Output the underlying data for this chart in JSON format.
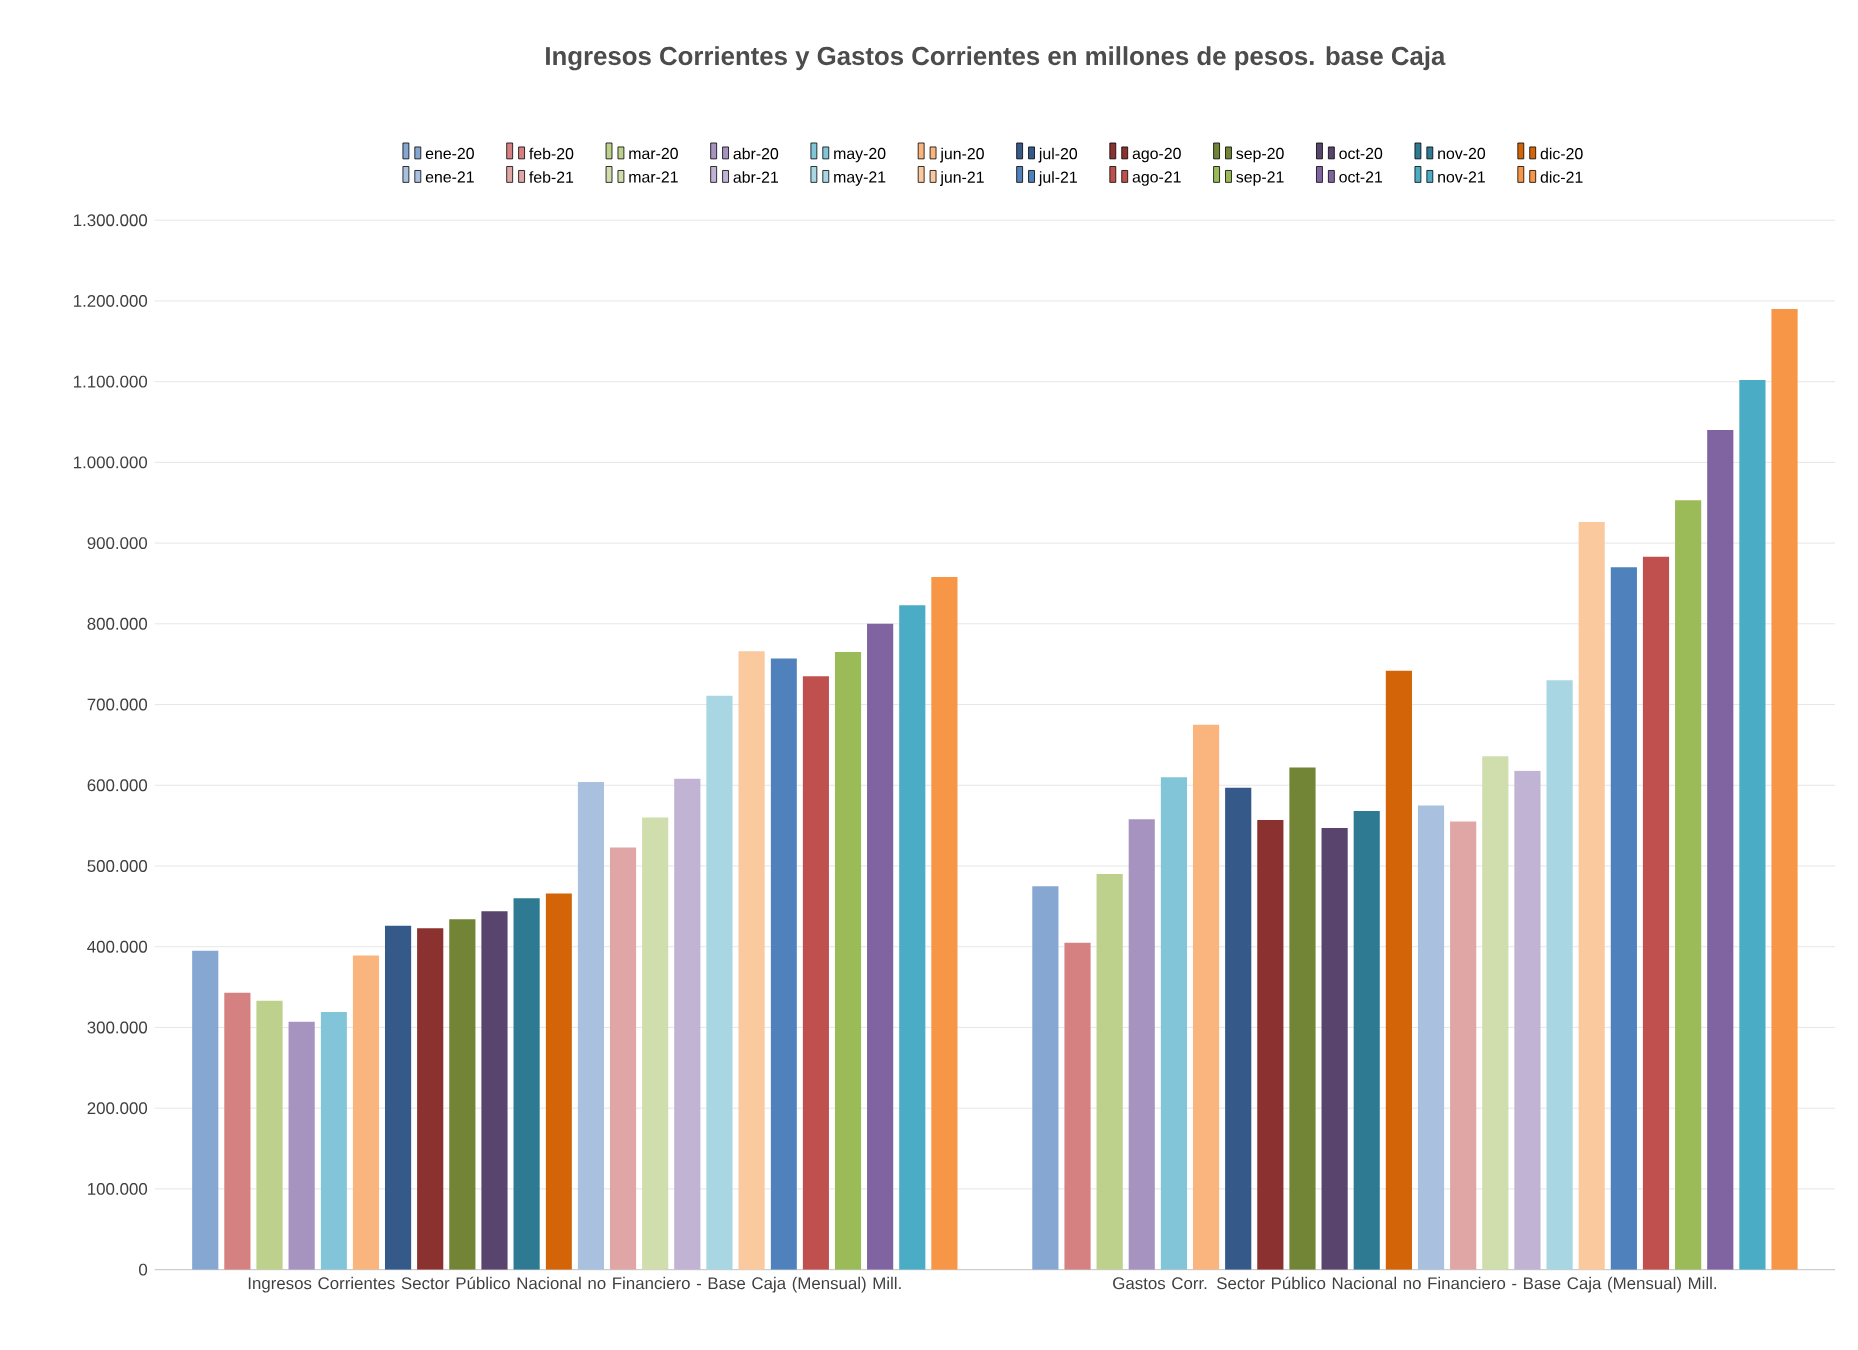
{
  "chart_data": {
    "type": "bar",
    "title": "Ingresos Corrientes y Gastos Corrientes en millones de pesos. base Caja",
    "categories": [
      "Ingresos Corrientes Sector Público Nacional no Financiero - Base Caja (Mensual) Mill.",
      "Gastos Corr. Sector Público Nacional no Financiero - Base Caja (Mensual) Mill."
    ],
    "ylim": [
      0,
      1300000
    ],
    "yticks": [
      {
        "value": 0,
        "label": "0"
      },
      {
        "value": 100000,
        "label": "100.000"
      },
      {
        "value": 200000,
        "label": "200.000"
      },
      {
        "value": 300000,
        "label": "300.000"
      },
      {
        "value": 400000,
        "label": "400.000"
      },
      {
        "value": 500000,
        "label": "500.000"
      },
      {
        "value": 600000,
        "label": "600.000"
      },
      {
        "value": 700000,
        "label": "700.000"
      },
      {
        "value": 800000,
        "label": "800.000"
      },
      {
        "value": 900000,
        "label": "900.000"
      },
      {
        "value": 1000000,
        "label": "1.000.000"
      },
      {
        "value": 1100000,
        "label": "1.100.000"
      },
      {
        "value": 1200000,
        "label": "1.200.000"
      },
      {
        "value": 1300000,
        "label": "1.300.000"
      }
    ],
    "grid": "y",
    "legend": "top",
    "series": [
      {
        "name": "ene-20",
        "color": "#86a7d2",
        "values": [
          395000,
          475000
        ]
      },
      {
        "name": "feb-20",
        "color": "#d58181",
        "values": [
          343000,
          405000
        ]
      },
      {
        "name": "mar-20",
        "color": "#bdd08c",
        "values": [
          333000,
          490000
        ]
      },
      {
        "name": "abr-20",
        "color": "#a693c0",
        "values": [
          307000,
          558000
        ]
      },
      {
        "name": "may-20",
        "color": "#83c5d8",
        "values": [
          319000,
          610000
        ]
      },
      {
        "name": "jun-20",
        "color": "#f9b57d",
        "values": [
          389000,
          675000
        ]
      },
      {
        "name": "jul-20",
        "color": "#355a8a",
        "values": [
          426000,
          597000
        ]
      },
      {
        "name": "ago-20",
        "color": "#8b3231",
        "values": [
          423000,
          557000
        ]
      },
      {
        "name": "sep-20",
        "color": "#728536",
        "values": [
          434000,
          622000
        ]
      },
      {
        "name": "oct-20",
        "color": "#59446e",
        "values": [
          444000,
          547000
        ]
      },
      {
        "name": "nov-20",
        "color": "#2e7a93",
        "values": [
          460000,
          568000
        ]
      },
      {
        "name": "dic-20",
        "color": "#d36508",
        "values": [
          466000,
          742000
        ]
      },
      {
        "name": "ene-21",
        "color": "#a9c1df",
        "values": [
          604000,
          575000
        ]
      },
      {
        "name": "feb-21",
        "color": "#e0a6a6",
        "values": [
          523000,
          555000
        ]
      },
      {
        "name": "mar-21",
        "color": "#d0deae",
        "values": [
          560000,
          636000
        ]
      },
      {
        "name": "abr-21",
        "color": "#c1b3d4",
        "values": [
          608000,
          618000
        ]
      },
      {
        "name": "may-21",
        "color": "#a8d7e3",
        "values": [
          711000,
          730000
        ]
      },
      {
        "name": "jun-21",
        "color": "#fbc99e",
        "values": [
          766000,
          926000
        ]
      },
      {
        "name": "jul-21",
        "color": "#4f81bd",
        "values": [
          757000,
          870000
        ]
      },
      {
        "name": "ago-21",
        "color": "#c0504d",
        "values": [
          735000,
          883000
        ]
      },
      {
        "name": "sep-21",
        "color": "#9bbb59",
        "values": [
          765000,
          953000
        ]
      },
      {
        "name": "oct-21",
        "color": "#8064a2",
        "values": [
          800000,
          1040000
        ]
      },
      {
        "name": "nov-21",
        "color": "#4bacc6",
        "values": [
          823000,
          1102000
        ]
      },
      {
        "name": "dic-21",
        "color": "#f79646",
        "values": [
          858000,
          1190000
        ]
      }
    ]
  }
}
